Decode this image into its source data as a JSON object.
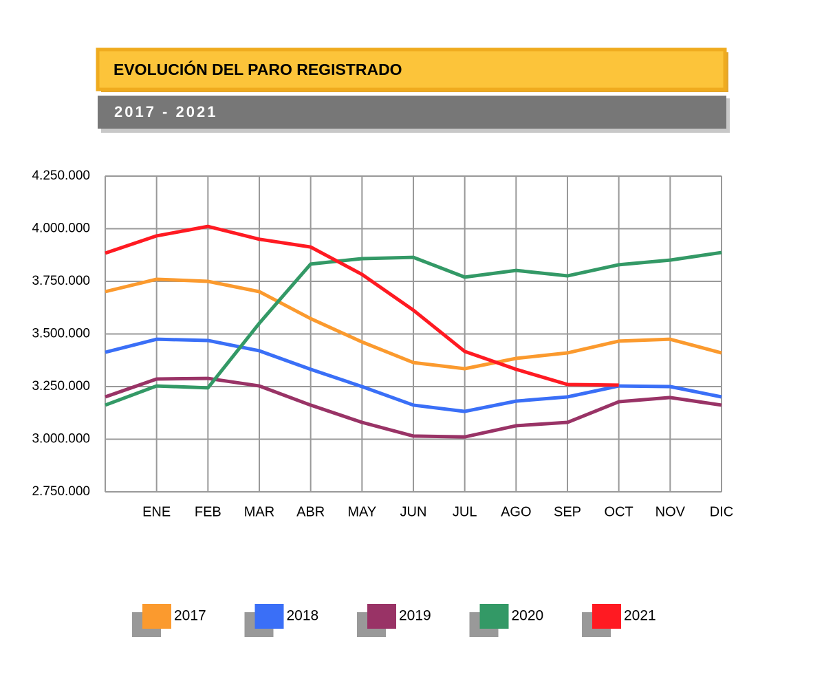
{
  "chart_data": {
    "type": "line",
    "title": "EVOLUCIÓN DEL PARO REGISTRADO",
    "subtitle": "2017 - 2021",
    "categories": [
      null,
      "ENE",
      "FEB",
      "MAR",
      "ABR",
      "MAY",
      "JUN",
      "JUL",
      "AGO",
      "SEP",
      "OCT",
      "NOV",
      "DIC"
    ],
    "series": [
      {
        "name": "2017",
        "color": "#fb9a2e",
        "values": [
          3701000,
          3760000,
          3750000,
          3701000,
          3573000,
          3462000,
          3364000,
          3335000,
          3384000,
          3410000,
          3466000,
          3475000,
          3410000
        ]
      },
      {
        "name": "2018",
        "color": "#3a6ff7",
        "values": [
          3413000,
          3475000,
          3469000,
          3420000,
          3332000,
          3250000,
          3162000,
          3132000,
          3181000,
          3201000,
          3253000,
          3250000,
          3201000
        ]
      },
      {
        "name": "2019",
        "color": "#993366",
        "values": [
          3201000,
          3286000,
          3289000,
          3253000,
          3162000,
          3080000,
          3015000,
          3011000,
          3064000,
          3080000,
          3178000,
          3198000,
          3162000
        ]
      },
      {
        "name": "2020",
        "color": "#339966",
        "values": [
          3162000,
          3253000,
          3244000,
          3551000,
          3832000,
          3858000,
          3864000,
          3770000,
          3802000,
          3776000,
          3829000,
          3851000,
          3887000
        ]
      },
      {
        "name": "2021",
        "color": "#ff1a22",
        "values": [
          3884000,
          3966000,
          4011000,
          3950000,
          3913000,
          3783000,
          3613000,
          3417000,
          3332000,
          3260000,
          3257000,
          null,
          null
        ]
      }
    ],
    "ylim": [
      2750000,
      4250000
    ],
    "yticks": [
      {
        "value": 2750000,
        "label": "2.750.000"
      },
      {
        "value": 3000000,
        "label": "3.000.000"
      },
      {
        "value": 3250000,
        "label": "3.250.000"
      },
      {
        "value": 3500000,
        "label": "3.500.000"
      },
      {
        "value": 3750000,
        "label": "3.750.000"
      },
      {
        "value": 4000000,
        "label": "4.000.000"
      },
      {
        "value": 4250000,
        "label": "4.250.000"
      }
    ],
    "grid": true,
    "legend": "bottom"
  }
}
